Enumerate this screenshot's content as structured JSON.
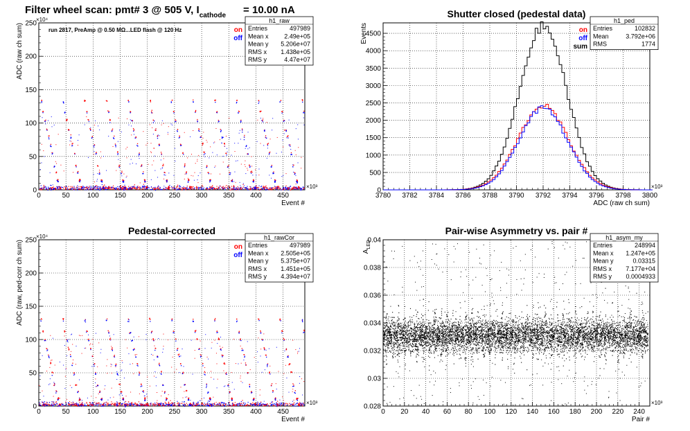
{
  "header": {
    "title_main": "Filter wheel scan: pmt#   3 @   505 V, I",
    "title_sub": "cathode",
    "title_end": "= 10.00 nA"
  },
  "chart_data": [
    {
      "id": "raw",
      "type": "scatter",
      "title": "",
      "annotation": "run 2817, PreAmp @ 0.50 MΩ...LED flash @  120 Hz",
      "xlabel": "Event #",
      "ylabel": "ADC (raw ch sum)",
      "x_multiplier": "×10³",
      "y_multiplier": "×10⁴",
      "xlim": [
        0,
        490
      ],
      "ylim": [
        0,
        250
      ],
      "xticks": [
        0,
        50,
        100,
        150,
        200,
        250,
        300,
        350,
        400,
        450
      ],
      "yticks": [
        0,
        50,
        100,
        150,
        200,
        250
      ],
      "grid": true,
      "legend_labels": [
        "on",
        "off"
      ],
      "legend_colors": [
        "#ff0000",
        "#0000ff"
      ],
      "stats_box": {
        "name": "h1_raw",
        "rows": [
          [
            "Entries",
            "497989"
          ],
          [
            "Mean x",
            "2.49e+05"
          ],
          [
            "Mean y",
            "5.206e+07"
          ],
          [
            "RMS x",
            "1.438e+05"
          ],
          [
            "RMS y",
            "4.47e+07"
          ]
        ]
      },
      "bands": [
        {
          "y": 133,
          "spread": 6
        },
        {
          "y": 117,
          "spread": 5
        },
        {
          "y": 104,
          "spread": 5
        },
        {
          "y": 90,
          "spread": 5
        },
        {
          "y": 80,
          "spread": 5
        },
        {
          "y": 68,
          "spread": 5
        },
        {
          "y": 55,
          "spread": 5
        },
        {
          "y": 36,
          "spread": 5
        },
        {
          "y": 26,
          "spread": 4
        },
        {
          "y": 14,
          "spread": 4
        },
        {
          "y": 4,
          "spread": 3
        }
      ]
    },
    {
      "id": "ped",
      "type": "histogram",
      "title": "Shutter closed (pedestal data)",
      "xlabel": "ADC (raw ch sum)",
      "ylabel": "Events",
      "x_multiplier": "×10³",
      "xlim": [
        3780,
        3800
      ],
      "ylim": [
        0,
        4800
      ],
      "xticks": [
        3780,
        3782,
        3784,
        3786,
        3788,
        3790,
        3792,
        3794,
        3796,
        3798,
        3800
      ],
      "yticks": [
        0,
        500,
        1000,
        1500,
        2000,
        2500,
        3000,
        3500,
        4000,
        4500
      ],
      "grid": true,
      "legend_labels": [
        "on",
        "off",
        "sum"
      ],
      "legend_colors": [
        "#ff0000",
        "#0000ff",
        "#000000"
      ],
      "stats_box": {
        "name": "h1_ped",
        "rows": [
          [
            "Entries",
            "102832"
          ],
          [
            "Mean",
            "3.792e+06"
          ],
          [
            "RMS",
            "1774"
          ]
        ]
      },
      "mean": 3792.0,
      "sigma": 1.774,
      "peak_sum": 4700,
      "peak_on": 2420,
      "peak_off": 2350
    },
    {
      "id": "rawCor",
      "type": "scatter",
      "title": "Pedestal-corrected",
      "xlabel": "Event #",
      "ylabel": "ADC (raw, ped-corr ch sum)",
      "x_multiplier": "×10³",
      "y_multiplier": "×10⁴",
      "xlim": [
        0,
        490
      ],
      "ylim": [
        0,
        250
      ],
      "xticks": [
        0,
        50,
        100,
        150,
        200,
        250,
        300,
        350,
        400,
        450
      ],
      "yticks": [
        0,
        50,
        100,
        150,
        200,
        250
      ],
      "grid": true,
      "legend_labels": [
        "on",
        "off"
      ],
      "legend_colors": [
        "#ff0000",
        "#0000ff"
      ],
      "stats_box": {
        "name": "h1_rawCor",
        "rows": [
          [
            "Entries",
            "497989"
          ],
          [
            "Mean x",
            "2.505e+05"
          ],
          [
            "Mean y",
            "5.375e+07"
          ],
          [
            "RMS x",
            "1.451e+05"
          ],
          [
            "RMS y",
            "4.394e+07"
          ]
        ]
      },
      "bands": [
        {
          "y": 130,
          "spread": 6
        },
        {
          "y": 112,
          "spread": 5
        },
        {
          "y": 100,
          "spread": 5
        },
        {
          "y": 86,
          "spread": 5
        },
        {
          "y": 76,
          "spread": 5
        },
        {
          "y": 63,
          "spread": 5
        },
        {
          "y": 50,
          "spread": 5
        },
        {
          "y": 32,
          "spread": 5
        },
        {
          "y": 22,
          "spread": 4
        },
        {
          "y": 11,
          "spread": 4
        },
        {
          "y": 2,
          "spread": 3
        }
      ]
    },
    {
      "id": "asym",
      "type": "scatter",
      "title": "Pair-wise Asymmetry vs. pair #",
      "xlabel": "Pair #",
      "ylabel": "A_LED",
      "ylabel_main": "A",
      "ylabel_sub": "LED",
      "x_multiplier": "×10³",
      "xlim": [
        0,
        250
      ],
      "ylim": [
        0.028,
        0.04
      ],
      "xticks": [
        0,
        20,
        40,
        60,
        80,
        100,
        120,
        140,
        160,
        180,
        200,
        220,
        240
      ],
      "yticks": [
        0.028,
        0.03,
        0.032,
        0.034,
        0.036,
        0.038,
        0.04
      ],
      "ytick_labels": [
        "0.028",
        "0.03",
        "0.032",
        "0.034",
        "0.036",
        "0.038",
        "0.04"
      ],
      "grid": true,
      "stats_box": {
        "name": "h1_asym_my",
        "rows": [
          [
            "Entries",
            "248994"
          ],
          [
            "Mean x",
            "1.247e+05"
          ],
          [
            "Mean y",
            "0.03315"
          ],
          [
            "RMS x",
            "7.177e+04"
          ],
          [
            "RMS y",
            "0.0004933"
          ]
        ]
      },
      "band_center": 0.0331,
      "band_rms": 0.0005
    }
  ]
}
